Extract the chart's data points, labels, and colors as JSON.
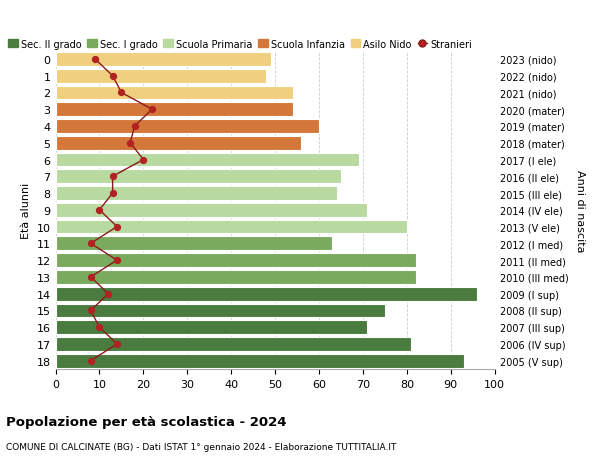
{
  "ages": [
    18,
    17,
    16,
    15,
    14,
    13,
    12,
    11,
    10,
    9,
    8,
    7,
    6,
    5,
    4,
    3,
    2,
    1,
    0
  ],
  "anni_nascita": [
    "2005 (V sup)",
    "2006 (IV sup)",
    "2007 (III sup)",
    "2008 (II sup)",
    "2009 (I sup)",
    "2010 (III med)",
    "2011 (II med)",
    "2012 (I med)",
    "2013 (V ele)",
    "2014 (IV ele)",
    "2015 (III ele)",
    "2016 (II ele)",
    "2017 (I ele)",
    "2018 (mater)",
    "2019 (mater)",
    "2020 (mater)",
    "2021 (nido)",
    "2022 (nido)",
    "2023 (nido)"
  ],
  "bar_values": [
    93,
    81,
    71,
    75,
    96,
    82,
    82,
    63,
    80,
    71,
    64,
    65,
    69,
    56,
    60,
    54,
    54,
    48,
    49
  ],
  "stranieri": [
    8,
    14,
    10,
    8,
    12,
    8,
    14,
    8,
    14,
    10,
    13,
    13,
    20,
    17,
    18,
    22,
    15,
    13,
    9
  ],
  "bar_colors": [
    "#4a7c3f",
    "#4a7c3f",
    "#4a7c3f",
    "#4a7c3f",
    "#4a7c3f",
    "#7aaa5e",
    "#7aaa5e",
    "#7aaa5e",
    "#b8d9a0",
    "#b8d9a0",
    "#b8d9a0",
    "#b8d9a0",
    "#b8d9a0",
    "#d4773a",
    "#d4773a",
    "#d4773a",
    "#f0d080",
    "#f0d080",
    "#f0d080"
  ],
  "legend_labels": [
    "Sec. II grado",
    "Sec. I grado",
    "Scuola Primaria",
    "Scuola Infanzia",
    "Asilo Nido",
    "Stranieri"
  ],
  "legend_colors": [
    "#4a7c3f",
    "#7aaa5e",
    "#b8d9a0",
    "#d4773a",
    "#f0d080",
    "#b22222"
  ],
  "title": "Popolazione per età scolastica - 2024",
  "subtitle": "COMUNE DI CALCINATE (BG) - Dati ISTAT 1° gennaio 2024 - Elaborazione TUTTITALIA.IT",
  "ylabel_left": "Età alunni",
  "ylabel_right": "Anni di nascita",
  "xlim": [
    0,
    100
  ],
  "background_color": "#ffffff",
  "stranieri_color": "#b22222",
  "line_color": "#8b1a1a",
  "grid_color": "#cccccc"
}
